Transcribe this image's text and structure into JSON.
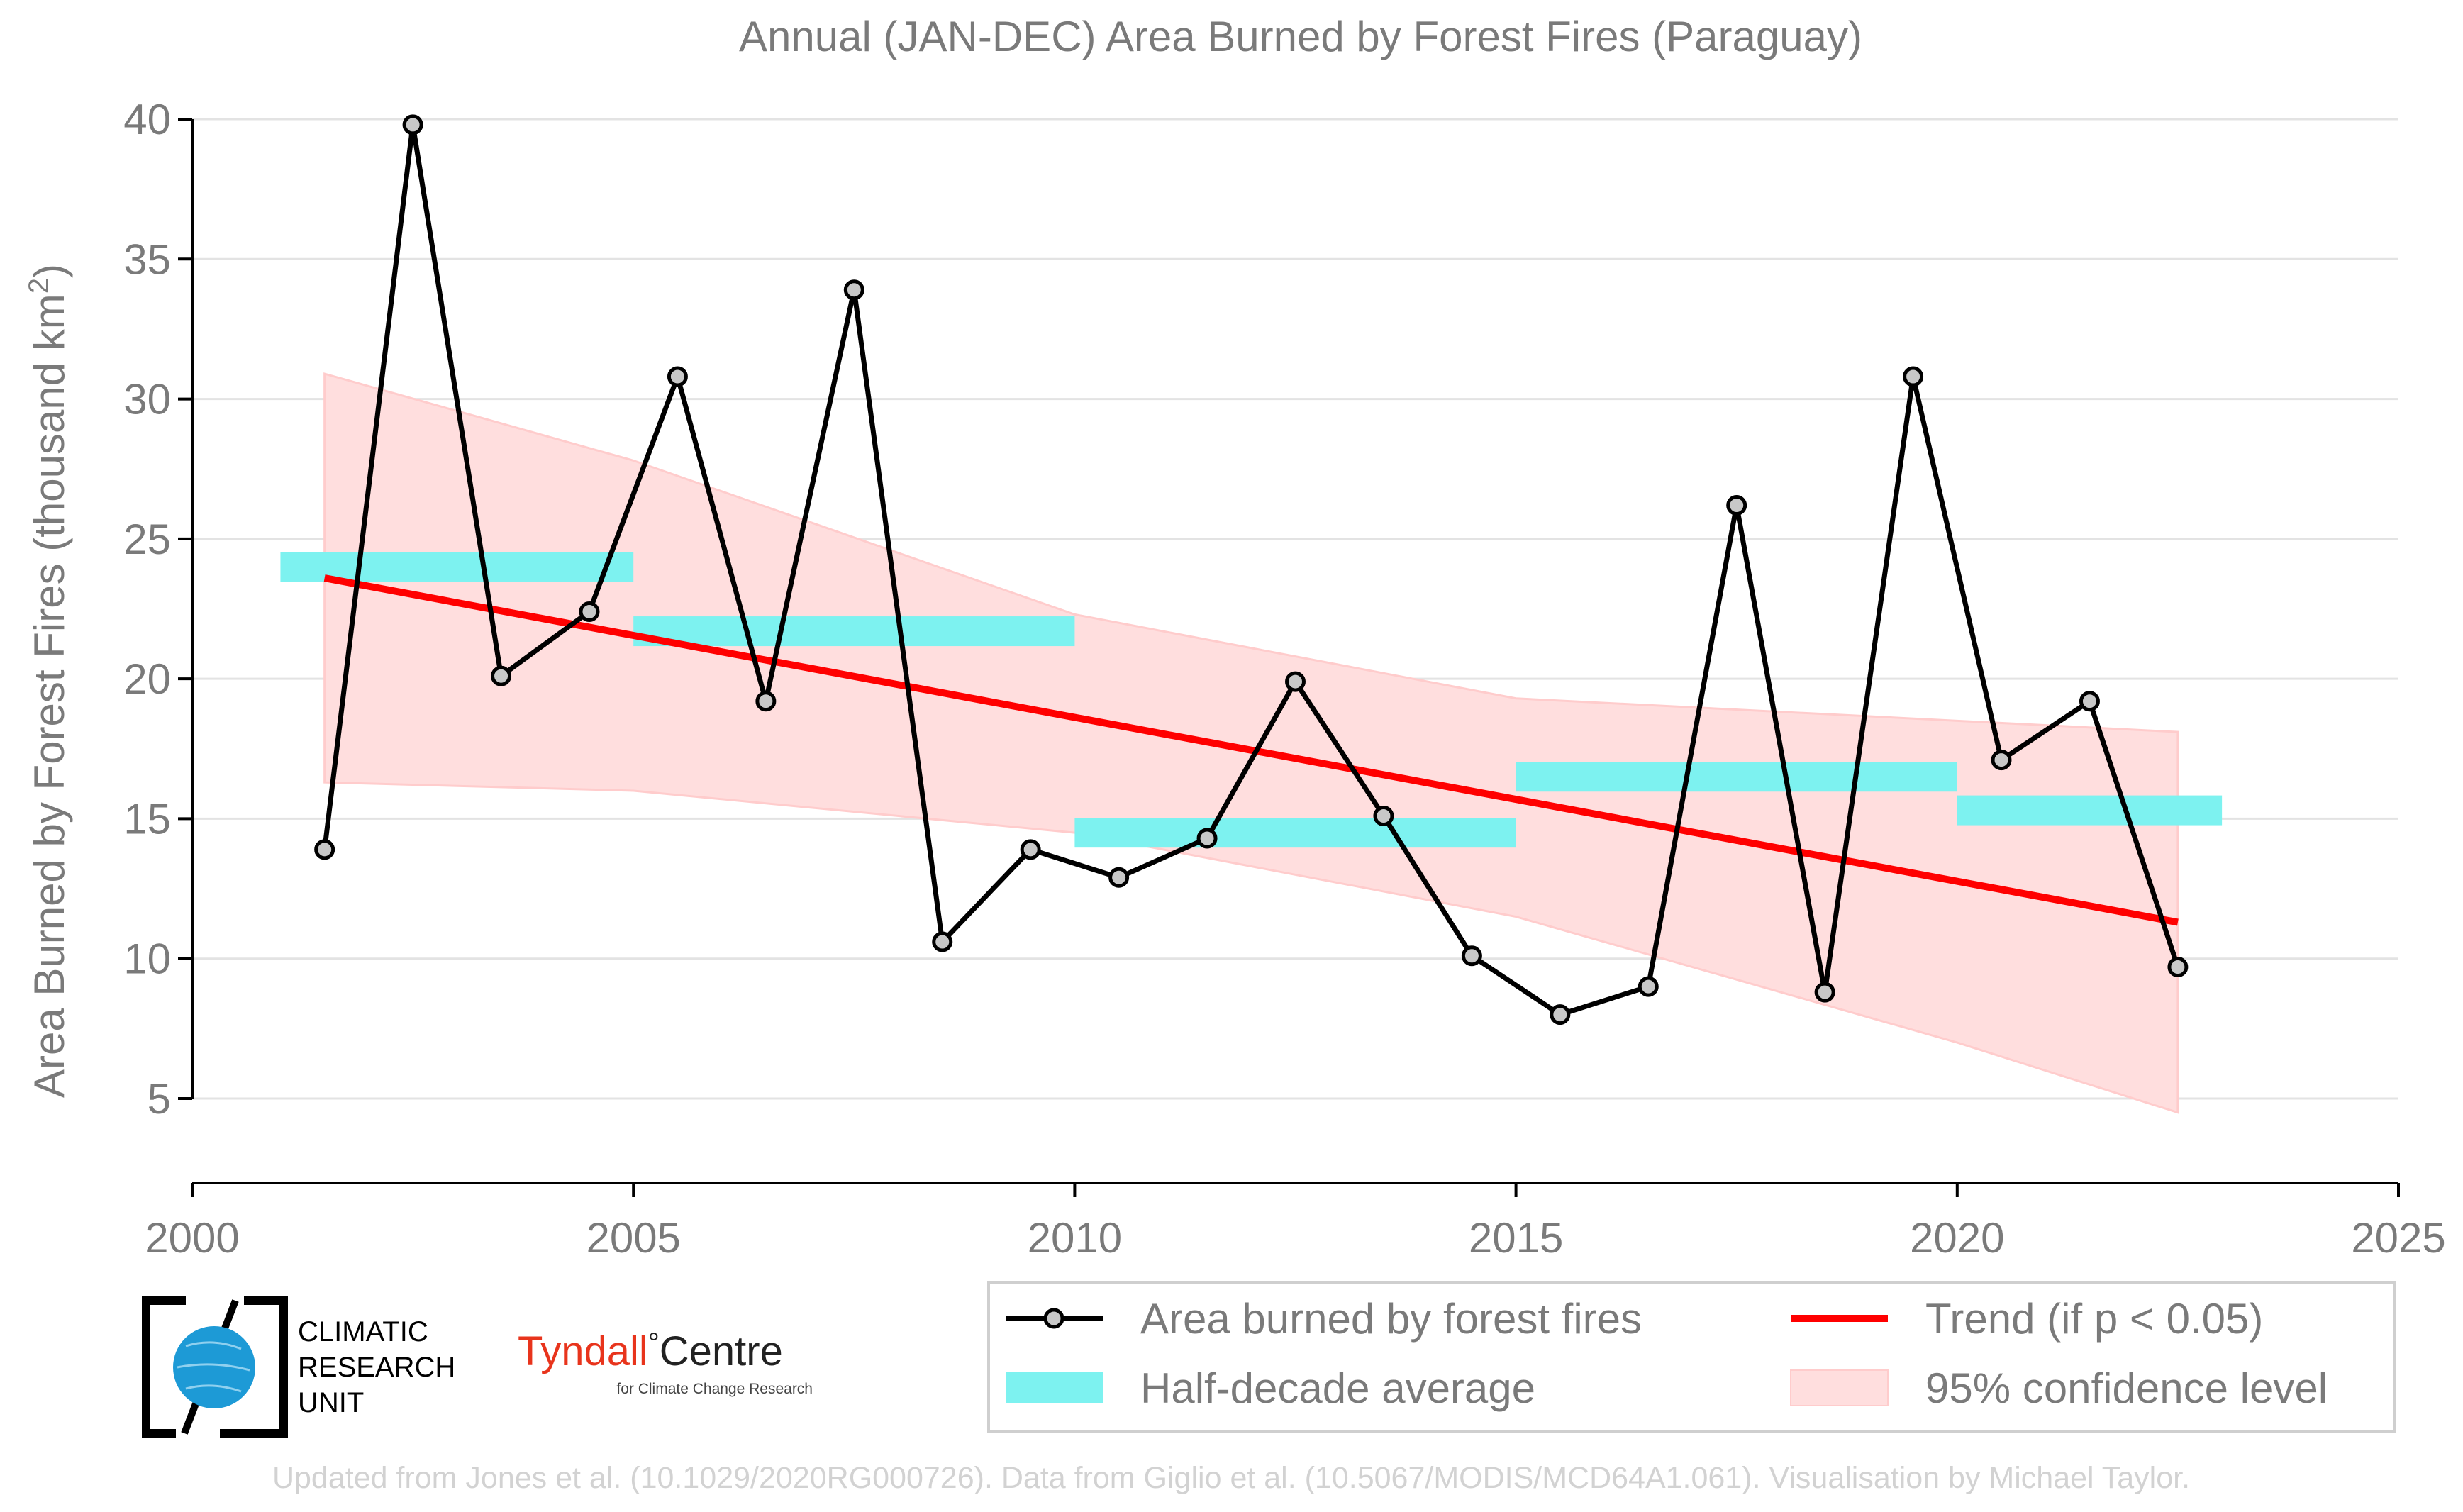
{
  "chart_data": {
    "type": "line",
    "title": "Annual (JAN-DEC) Area Burned by Forest Fires (Paraguay)",
    "ylabel_main": "Area Burned by Forest Fires (thousand km",
    "ylabel_sup": "2",
    "ylabel_close": ")",
    "xlabel": "",
    "xlim": [
      2000,
      2025
    ],
    "ylim": [
      1.5,
      41.5
    ],
    "xticks": [
      2000,
      2005,
      2010,
      2015,
      2020,
      2025
    ],
    "yticks": [
      5,
      10,
      15,
      20,
      25,
      30,
      35,
      40
    ],
    "grid": "horizontal",
    "legend_position": "bottom-right",
    "series": [
      {
        "name": "Area burned by forest fires",
        "kind": "line-markers",
        "color": "#000000",
        "marker_fill": "#c8c8c8",
        "x": [
          2001.5,
          2002.5,
          2003.5,
          2004.5,
          2005.5,
          2006.5,
          2007.5,
          2008.5,
          2009.5,
          2010.5,
          2011.5,
          2012.5,
          2013.5,
          2014.5,
          2015.5,
          2016.5,
          2017.5,
          2018.5,
          2019.5,
          2020.5,
          2021.5,
          2022.5
        ],
        "y": [
          13.9,
          39.8,
          20.1,
          22.4,
          30.8,
          19.2,
          33.9,
          10.6,
          13.9,
          12.9,
          14.3,
          19.9,
          15.1,
          10.1,
          8.0,
          9.0,
          26.2,
          8.8,
          30.8,
          17.1,
          19.2,
          9.7
        ]
      },
      {
        "name": "Half-decade average",
        "kind": "step-bars",
        "color": "#7df2f0",
        "bars": [
          {
            "x0": 2001,
            "x1": 2005,
            "y": 24.0
          },
          {
            "x0": 2005,
            "x1": 2010,
            "y": 21.7
          },
          {
            "x0": 2010,
            "x1": 2015,
            "y": 14.5
          },
          {
            "x0": 2015,
            "x1": 2020,
            "y": 16.5
          },
          {
            "x0": 2020,
            "x1": 2023,
            "y": 15.3
          }
        ]
      },
      {
        "name": "Trend (if p < 0.05)",
        "kind": "line",
        "color": "#ff0000",
        "x": [
          2001.5,
          2022.5
        ],
        "y": [
          23.6,
          11.3
        ]
      },
      {
        "name": "95% confidence level",
        "kind": "band",
        "color": "#ffdede",
        "x": [
          2001.5,
          2005,
          2010,
          2015,
          2020,
          2022.5
        ],
        "lower": [
          16.3,
          16.0,
          14.5,
          11.5,
          7.0,
          4.5
        ],
        "upper": [
          30.9,
          27.8,
          22.3,
          19.3,
          18.5,
          18.1
        ]
      }
    ]
  },
  "legend": {
    "items": [
      {
        "label": "Area burned by forest fires"
      },
      {
        "label": "Trend (if p < 0.05)"
      },
      {
        "label": "Half-decade average"
      },
      {
        "label": "95% confidence level"
      }
    ]
  },
  "logos": {
    "cru_line1": "CLIMATIC",
    "cru_line2": "RESEARCH",
    "cru_line3": "UNIT",
    "tyndall_name": "Tyndall",
    "tyndall_degree": "°",
    "tyndall_centre": "Centre",
    "tyndall_sub": "for Climate Change Research"
  },
  "footer": {
    "credit": "Updated from Jones et al. (10.1029/2020RG000726). Data from Giglio et al. (10.5067/MODIS/MCD64A1.061). Visualisation by Michael Taylor."
  }
}
